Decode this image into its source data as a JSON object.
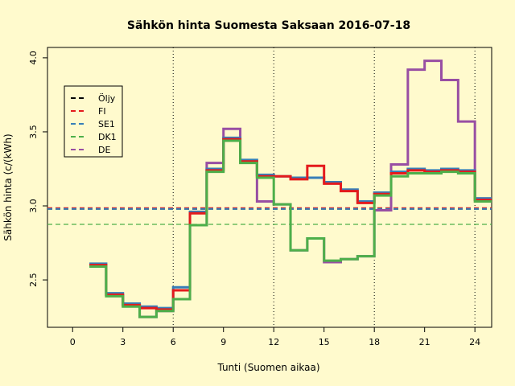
{
  "chart_data": {
    "type": "line",
    "step": true,
    "title": "Sähkön hinta Suomesta Saksaan 2016-07-18",
    "xlabel": "Tunti (Suomen aikaa)",
    "ylabel": "Sähkön hinta (c/(kWh)",
    "xlim": [
      -1.5,
      25
    ],
    "ylim": [
      2.18,
      4.07
    ],
    "xticks": [
      0,
      3,
      6,
      9,
      12,
      15,
      18,
      21,
      24
    ],
    "yticks": [
      2.5,
      3.0,
      3.5,
      4.0
    ],
    "ytick_labels": [
      "2.5",
      "3.0",
      "3.5",
      "4.0"
    ],
    "vlines": [
      6,
      12,
      18,
      24
    ],
    "grid": false,
    "legend_position": "top-left",
    "hours_start": [
      1,
      2,
      3,
      4,
      5,
      6,
      7,
      8,
      9,
      10,
      11,
      12,
      13,
      14,
      15,
      16,
      17,
      18,
      19,
      20,
      21,
      22,
      23,
      24
    ],
    "series": [
      {
        "name": "Öljy",
        "kind": "hline",
        "color": "#000000",
        "value": 2.98
      },
      {
        "name": "FI",
        "kind": "hline",
        "color": "#e41a1c",
        "value": 2.985
      },
      {
        "name": "SE1",
        "kind": "hline",
        "color": "#377eb8",
        "value": 2.98
      },
      {
        "name": "DK1",
        "kind": "hline",
        "color": "#4daf4a",
        "value": 2.875
      },
      {
        "name": "DE",
        "kind": "step",
        "color": "#984ea3",
        "values": [
          2.6,
          2.4,
          2.33,
          2.25,
          2.29,
          2.37,
          2.87,
          3.29,
          3.52,
          3.3,
          3.03,
          3.01,
          2.7,
          2.78,
          2.62,
          2.64,
          2.66,
          2.97,
          3.28,
          3.92,
          3.98,
          3.85,
          3.57,
          3.05
        ]
      },
      {
        "name": "SE1",
        "kind": "step",
        "color": "#377eb8",
        "values": [
          2.61,
          2.41,
          2.34,
          2.32,
          2.31,
          2.45,
          2.96,
          3.25,
          3.46,
          3.31,
          3.21,
          3.2,
          3.19,
          3.19,
          3.16,
          3.11,
          3.03,
          3.09,
          3.23,
          3.25,
          3.24,
          3.25,
          3.24,
          3.05
        ]
      },
      {
        "name": "FI",
        "kind": "step",
        "color": "#e41a1c",
        "values": [
          2.6,
          2.4,
          2.33,
          2.31,
          2.3,
          2.43,
          2.95,
          3.24,
          3.45,
          3.3,
          3.2,
          3.2,
          3.18,
          3.27,
          3.15,
          3.1,
          3.02,
          3.08,
          3.22,
          3.24,
          3.23,
          3.24,
          3.23,
          3.04
        ]
      },
      {
        "name": "DK1",
        "kind": "step",
        "color": "#4daf4a",
        "values": [
          2.59,
          2.39,
          2.32,
          2.25,
          2.29,
          2.37,
          2.87,
          3.23,
          3.44,
          3.29,
          3.19,
          3.01,
          2.7,
          2.78,
          2.63,
          2.64,
          2.66,
          3.07,
          3.2,
          3.22,
          3.22,
          3.23,
          3.22,
          3.03
        ]
      }
    ],
    "legend": [
      {
        "label": "Öljy",
        "color": "#000000"
      },
      {
        "label": "FI",
        "color": "#e41a1c"
      },
      {
        "label": "SE1",
        "color": "#377eb8"
      },
      {
        "label": "DK1",
        "color": "#4daf4a"
      },
      {
        "label": "DE",
        "color": "#984ea3"
      }
    ]
  }
}
